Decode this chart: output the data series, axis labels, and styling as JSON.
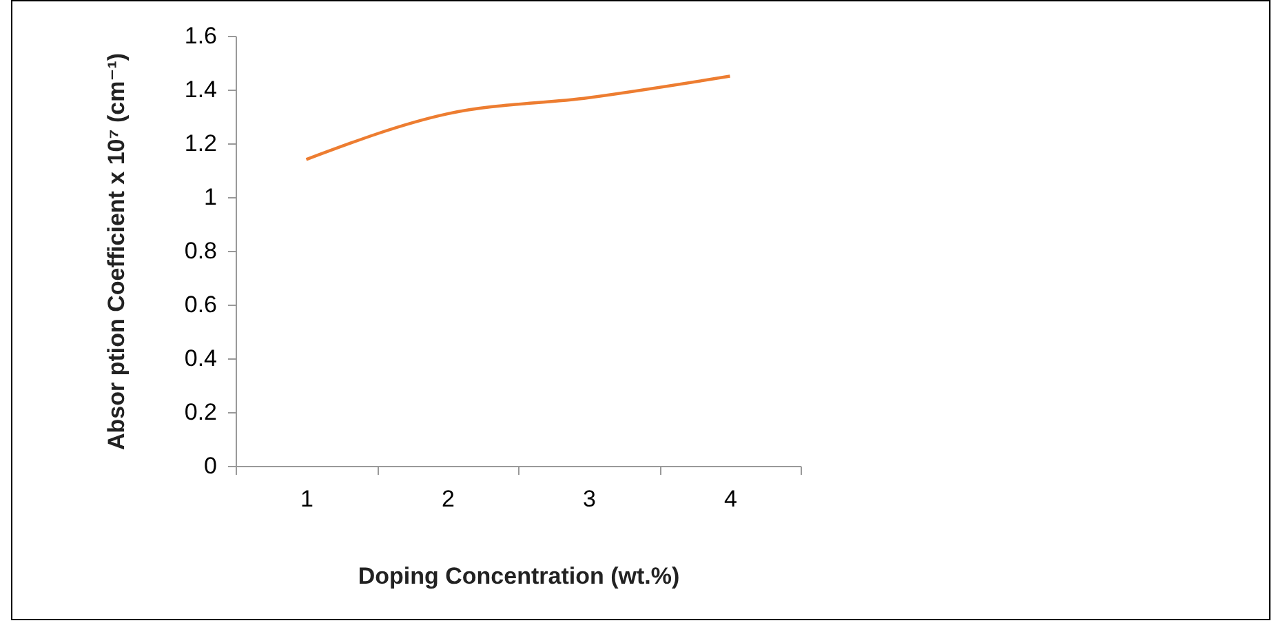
{
  "chart_data": {
    "type": "line",
    "xlabel": "Doping Concentration (wt.%)",
    "ylabel": "Absor ption Coefficient x 10⁷ (cm⁻¹)",
    "categories": [
      "1",
      "2",
      "3",
      "4"
    ],
    "series": [
      {
        "color": "#ed7d31",
        "values": [
          1.14,
          1.31,
          1.37,
          1.45
        ]
      }
    ],
    "ylim": [
      0,
      1.6
    ],
    "yticks": [
      0,
      0.2,
      0.4,
      0.6,
      0.8,
      1,
      1.2,
      1.4,
      1.6
    ],
    "grid": false,
    "legend": false,
    "marker": "none",
    "line_style": "solid"
  }
}
